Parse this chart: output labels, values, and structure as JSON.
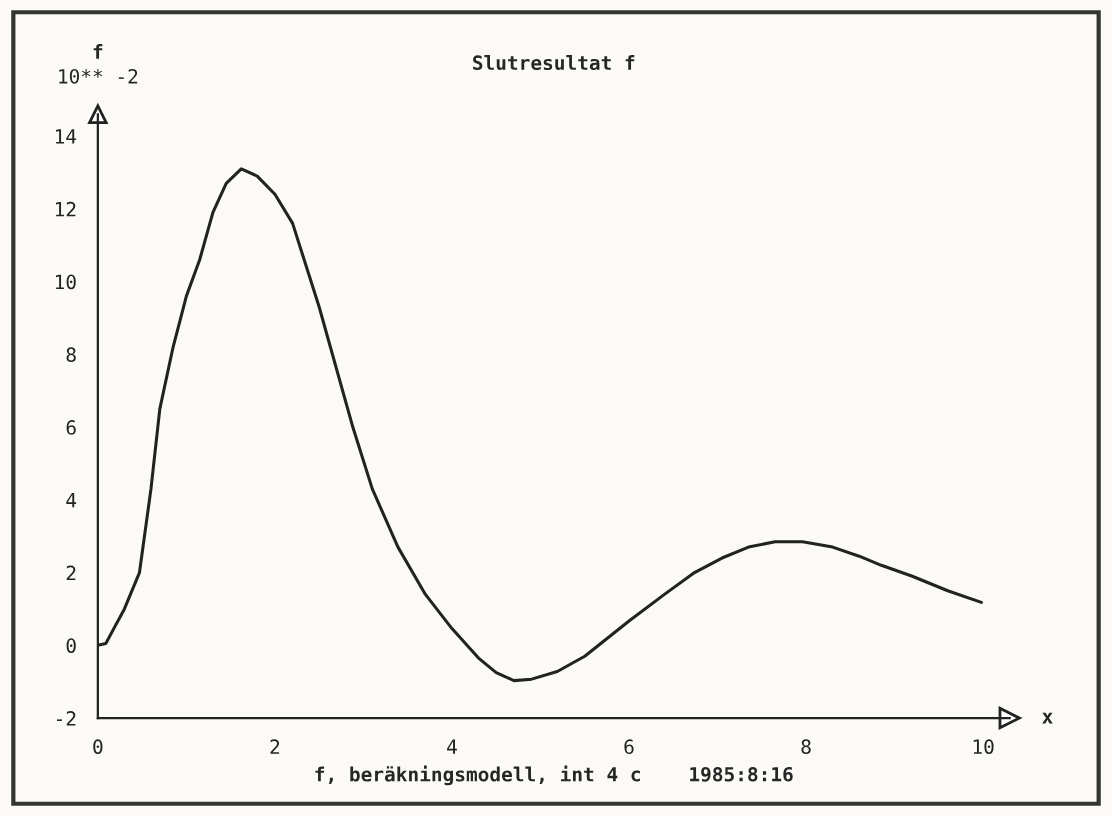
{
  "chart_data": {
    "type": "line",
    "title": "Slutresultat f",
    "xlabel": "x",
    "ylabel": "f",
    "annotations": [
      "10** -2",
      "f, beräkningsmodell, int 4 c    1985:8:16"
    ],
    "series": [
      {
        "color": "#222222",
        "x": [
          0,
          0.09,
          0.18,
          0.3,
          0.47,
          0.6,
          0.7,
          0.85,
          1.0,
          1.15,
          1.3,
          1.45,
          1.62,
          1.8,
          2.0,
          2.2,
          2.5,
          2.88,
          3.1,
          3.39,
          3.7,
          4.0,
          4.3,
          4.5,
          4.7,
          4.9,
          5.19,
          5.5,
          6.0,
          6.4,
          6.74,
          7.05,
          7.35,
          7.65,
          7.96,
          8.3,
          8.6,
          8.85,
          9.2,
          9.6,
          9.98
        ],
        "values": [
          0,
          0.05,
          0.46,
          1.0,
          2.0,
          4.3,
          6.5,
          8.2,
          9.6,
          10.6,
          11.9,
          12.7,
          13.1,
          12.9,
          12.4,
          11.6,
          9.3,
          6.0,
          4.3,
          2.7,
          1.4,
          0.46,
          -0.35,
          -0.75,
          -0.97,
          -0.93,
          -0.72,
          -0.3,
          0.67,
          1.4,
          2.0,
          2.4,
          2.7,
          2.85,
          2.85,
          2.7,
          2.45,
          2.2,
          1.9,
          1.5,
          1.18
        ]
      }
    ],
    "xlim": [
      0,
      10.3
    ],
    "ylim": [
      -2,
      14.6
    ],
    "xticks": [
      0,
      2,
      4,
      6,
      8,
      10
    ],
    "yticks": [
      -2,
      0,
      2,
      4,
      6,
      8,
      10,
      12,
      14
    ]
  }
}
